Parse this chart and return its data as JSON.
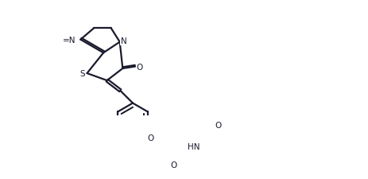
{
  "bg_color": "#ffffff",
  "line_color": "#1a1a2e",
  "line_width": 1.6,
  "figsize": [
    4.63,
    2.26
  ],
  "dpi": 100,
  "xlim": [
    0,
    9.5
  ],
  "ylim": [
    0,
    4.8
  ],
  "atoms": {
    "S": "S",
    "N1": "N",
    "N2": "N",
    "O_carbonyl": "O",
    "O_ether": "O",
    "HN": "HN",
    "O_methoxy": "O"
  }
}
